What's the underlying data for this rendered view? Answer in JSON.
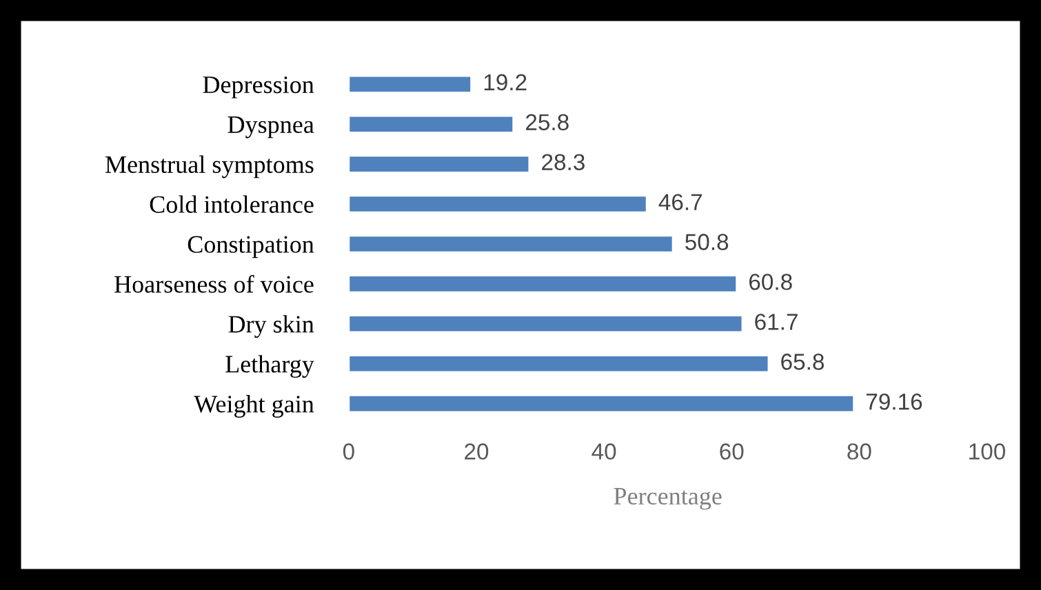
{
  "chart_data": {
    "type": "bar",
    "orientation": "horizontal",
    "xlabel": "Percentage",
    "categories": [
      "Depression",
      "Dyspnea",
      "Menstrual symptoms",
      "Cold intolerance",
      "Constipation",
      "Hoarseness of voice",
      "Dry skin",
      "Lethargy",
      "Weight gain"
    ],
    "values": [
      19.2,
      25.8,
      28.3,
      46.7,
      50.8,
      60.8,
      61.7,
      65.8,
      79.16
    ],
    "color": "#4f81bd",
    "xlim": [
      0,
      100
    ],
    "xticks": [
      0,
      20,
      40,
      60,
      80,
      100
    ],
    "data_labels": true,
    "grid": false,
    "legend": false
  }
}
